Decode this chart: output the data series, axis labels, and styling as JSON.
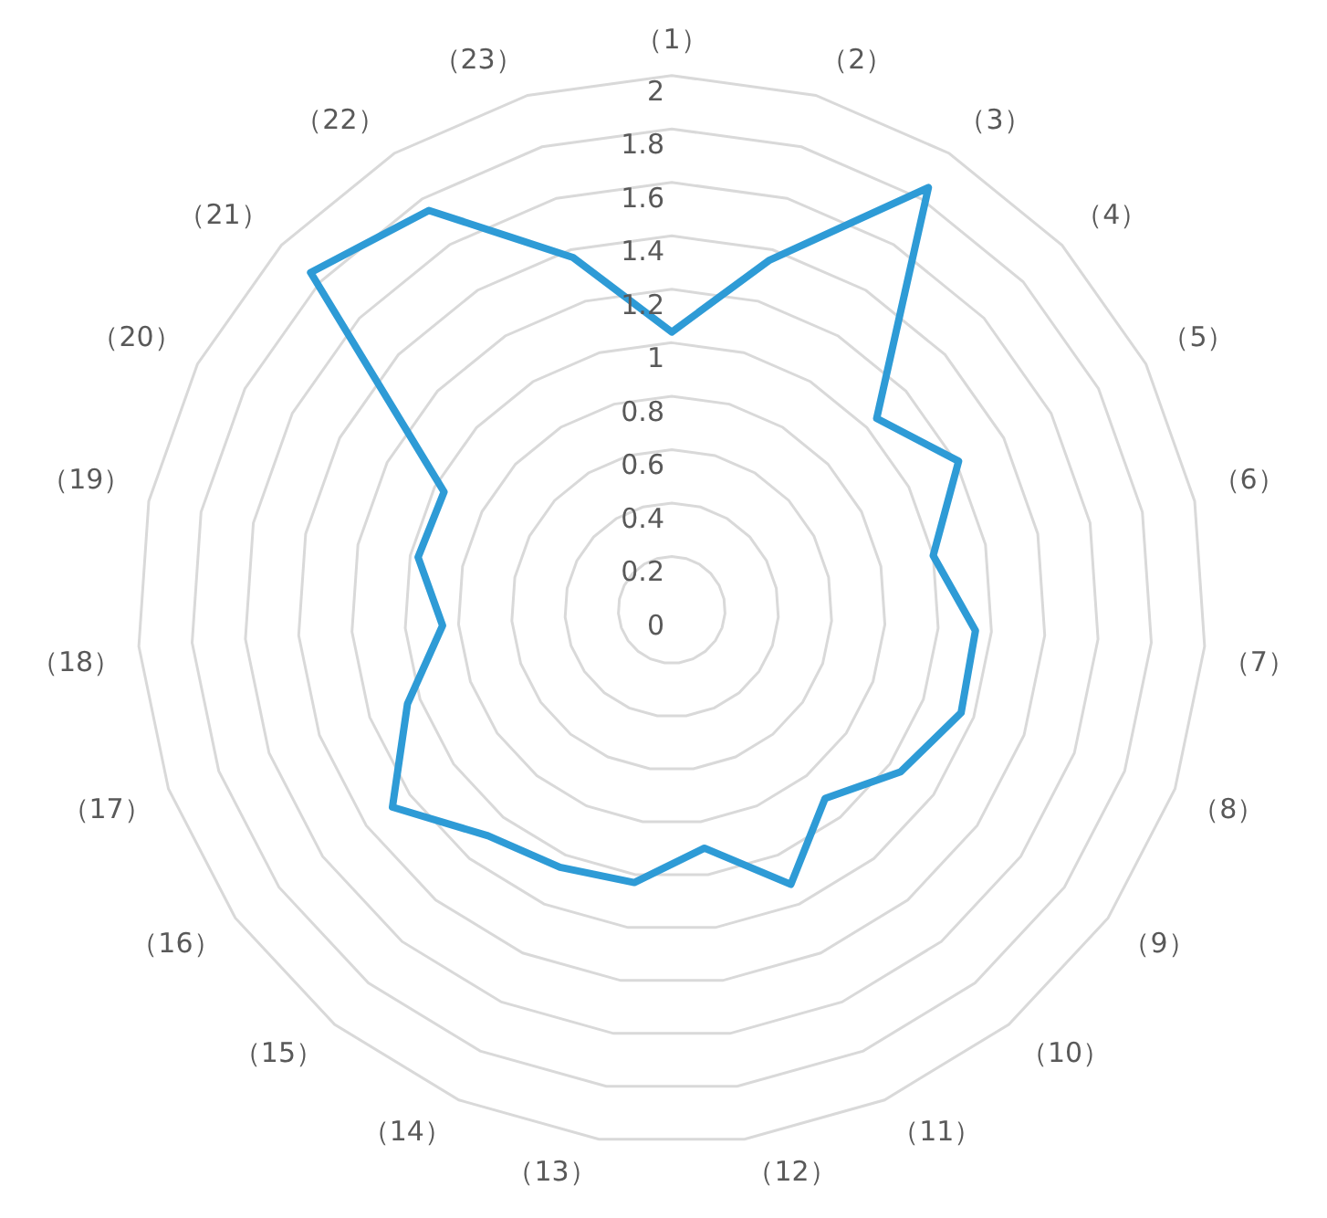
{
  "chart_data": {
    "type": "radar",
    "categories": [
      "（1）",
      "（2）",
      "（3）",
      "（4）",
      "（5）",
      "（6）",
      "（7）",
      "（8）",
      "（9）",
      "（10）",
      "（11）",
      "（12）",
      "（13）",
      "（14）",
      "（15）",
      "（16）",
      "（17）",
      "（18）",
      "（19）",
      "（20）",
      "（21）",
      "（22）",
      "（23）"
    ],
    "series": [
      {
        "color": "#2e9bd6",
        "values": [
          1.04,
          1.36,
          1.85,
          1.05,
          1.21,
          1.0,
          1.14,
          1.15,
          1.05,
          0.91,
          1.12,
          0.9,
          1.03,
          1.05,
          1.09,
          1.28,
          1.05,
          0.86,
          0.97,
          0.96,
          1.85,
          1.75,
          1.37
        ]
      }
    ],
    "ylim": [
      0,
      2
    ],
    "yticks": [
      0,
      0.2,
      0.4,
      0.6,
      0.8,
      1,
      1.2,
      1.4,
      1.6,
      1.8,
      2
    ],
    "grid": true,
    "legend": false,
    "marker": "none",
    "line_style": "solid"
  }
}
